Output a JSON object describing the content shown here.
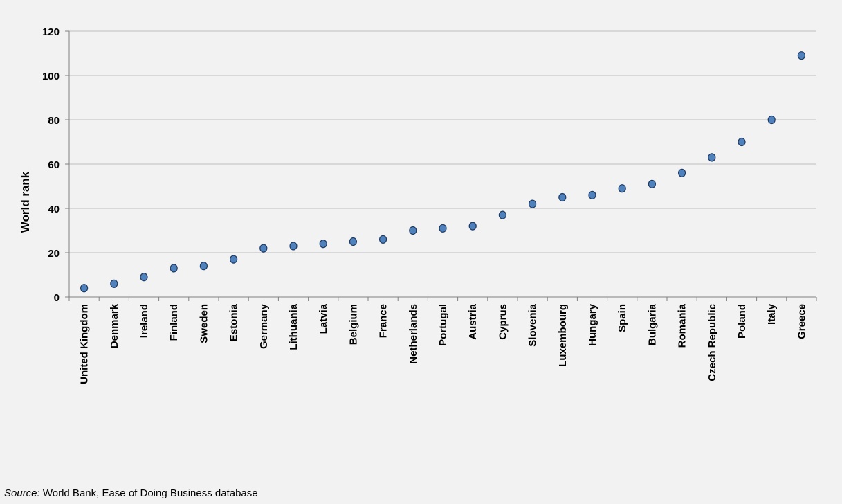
{
  "chart_data": {
    "type": "scatter",
    "title": "",
    "xlabel": "",
    "ylabel": "World rank",
    "ylim": [
      0,
      120
    ],
    "yticks": [
      0,
      20,
      40,
      60,
      80,
      100,
      120
    ],
    "grid": true,
    "legend": "none",
    "categories": [
      "United Kingdom",
      "Denmark",
      "Ireland",
      "Finland",
      "Sweden",
      "Estonia",
      "Germany",
      "Lithuania",
      "Latvia",
      "Belgium",
      "France",
      "Netherlands",
      "Portugal",
      "Austria",
      "Cyprus",
      "Slovenia",
      "Luxembourg",
      "Hungary",
      "Spain",
      "Bulgaria",
      "Romania",
      "Czech Republic",
      "Poland",
      "Italy",
      "Greece"
    ],
    "series": [
      {
        "values": [
          4,
          6,
          9,
          13,
          14,
          17,
          22,
          23,
          24,
          25,
          26,
          30,
          31,
          32,
          37,
          42,
          45,
          46,
          49,
          51,
          56,
          63,
          70,
          80,
          109
        ]
      }
    ],
    "colors": {
      "marker_fill": "#4f81bd",
      "marker_stroke": "#1f3b63",
      "grid": "#bfbfbf",
      "axis": "#808080",
      "background": "#f2f2f2"
    }
  },
  "source": {
    "label": "Source:",
    "text": " World Bank, Ease of Doing Business database"
  }
}
